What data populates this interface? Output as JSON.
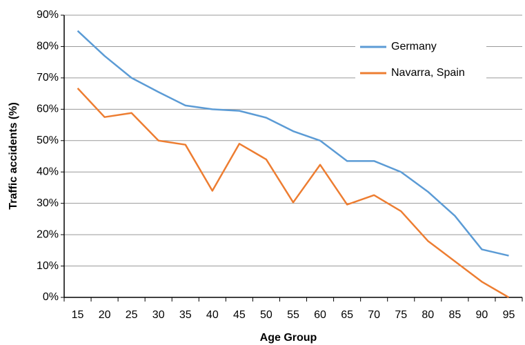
{
  "chart_data": {
    "type": "line",
    "xlabel": "Age Group",
    "ylabel": "Traffic accidents (%)",
    "categories": [
      "15",
      "20",
      "25",
      "30",
      "35",
      "40",
      "45",
      "50",
      "55",
      "60",
      "65",
      "70",
      "75",
      "80",
      "85",
      "90",
      "95"
    ],
    "series": [
      {
        "name": "Germany",
        "color": "#5b9bd5",
        "values": [
          85,
          77,
          70,
          65.5,
          61.2,
          60,
          59.5,
          57.3,
          53,
          50,
          43.5,
          43.5,
          40,
          33.7,
          26,
          15.3,
          13.3
        ]
      },
      {
        "name": "Navarra, Spain",
        "color": "#ed7d31",
        "values": [
          66.7,
          57.5,
          58.8,
          50,
          48.7,
          34,
          49,
          44,
          30.3,
          42.3,
          29.6,
          32.6,
          27.5,
          18,
          11.5,
          5,
          0
        ]
      }
    ],
    "ylim": [
      0,
      90
    ],
    "yticks": [
      {
        "value": 0,
        "label": "0%"
      },
      {
        "value": 10,
        "label": "10%"
      },
      {
        "value": 20,
        "label": "20%"
      },
      {
        "value": 30,
        "label": "30%"
      },
      {
        "value": 40,
        "label": "40%"
      },
      {
        "value": 50,
        "label": "50%"
      },
      {
        "value": 60,
        "label": "60%"
      },
      {
        "value": 70,
        "label": "70%"
      },
      {
        "value": 80,
        "label": "80%"
      },
      {
        "value": 90,
        "label": "90%"
      }
    ],
    "grid": true,
    "legend": "upper right"
  }
}
